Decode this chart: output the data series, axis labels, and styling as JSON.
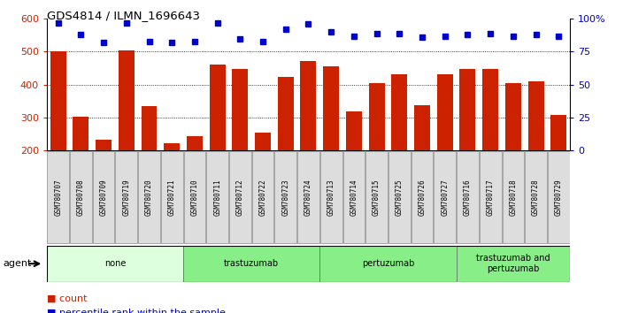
{
  "title": "GDS4814 / ILMN_1696643",
  "samples": [
    "GSM780707",
    "GSM780708",
    "GSM780709",
    "GSM780719",
    "GSM780720",
    "GSM780721",
    "GSM780710",
    "GSM780711",
    "GSM780712",
    "GSM780722",
    "GSM780723",
    "GSM780724",
    "GSM780713",
    "GSM780714",
    "GSM780715",
    "GSM780725",
    "GSM780726",
    "GSM780727",
    "GSM780716",
    "GSM780717",
    "GSM780718",
    "GSM780728",
    "GSM780729"
  ],
  "counts": [
    500,
    303,
    232,
    505,
    333,
    222,
    244,
    460,
    448,
    253,
    422,
    472,
    456,
    319,
    403,
    432,
    338,
    430,
    448,
    448,
    405,
    410,
    308
  ],
  "percentile_ranks": [
    97,
    88,
    82,
    97,
    83,
    82,
    83,
    97,
    85,
    83,
    92,
    96,
    90,
    87,
    89,
    89,
    86,
    87,
    88,
    89,
    87,
    88,
    87
  ],
  "ylim_left": [
    200,
    600
  ],
  "ylim_right": [
    0,
    100
  ],
  "yticks_left": [
    200,
    300,
    400,
    500,
    600
  ],
  "yticks_right": [
    0,
    25,
    50,
    75,
    100
  ],
  "ytick_labels_right": [
    "0",
    "25",
    "50",
    "75",
    "100%"
  ],
  "grid_values": [
    300,
    400,
    500
  ],
  "bar_color": "#cc2200",
  "dot_color": "#0000cc",
  "groups": [
    {
      "label": "none",
      "start": 0,
      "end": 6,
      "color": "#ddffdd"
    },
    {
      "label": "trastuzumab",
      "start": 6,
      "end": 12,
      "color": "#88ee88"
    },
    {
      "label": "pertuzumab",
      "start": 12,
      "end": 18,
      "color": "#88ee88"
    },
    {
      "label": "trastuzumab and\npertuzumab",
      "start": 18,
      "end": 23,
      "color": "#88ee88"
    }
  ],
  "agent_label": "agent",
  "legend_count_label": "count",
  "legend_pct_label": "percentile rank within the sample",
  "tick_label_color_left": "#cc2200",
  "tick_label_color_right": "#0000cc",
  "tick_label_bg": "#dddddd"
}
